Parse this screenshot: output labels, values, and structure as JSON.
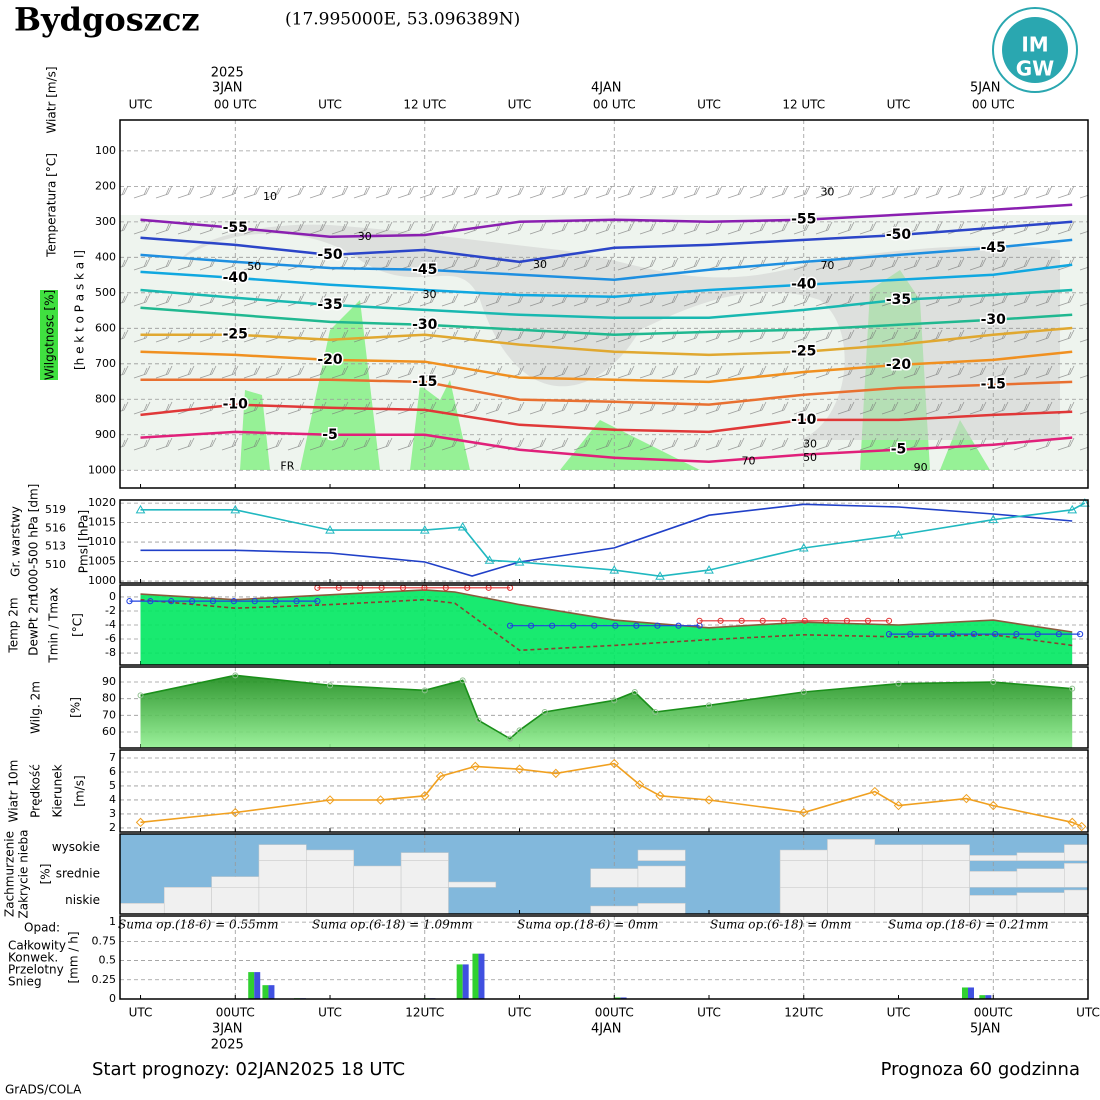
{
  "header": {
    "title": "Bydgoszcz",
    "coords": "(17.995000E, 53.096389N)",
    "logo": [
      "IM",
      "GW"
    ]
  },
  "footer": {
    "start": "Start prognozy: 02JAN2025 18 UTC",
    "length": "Prognoza 60 godzinna",
    "credit": "GrADS/COLA"
  },
  "time_axis": {
    "xlim": [
      -1.3,
      60
    ],
    "xticks": [
      {
        "value": 0,
        "label": "UTC"
      },
      {
        "value": 6,
        "label": "00UTC"
      },
      {
        "value": 12,
        "label": "UTC"
      },
      {
        "value": 18,
        "label": "12UTC"
      },
      {
        "value": 24,
        "label": "UTC"
      },
      {
        "value": 30,
        "label": "00UTC"
      },
      {
        "value": 36,
        "label": "UTC"
      },
      {
        "value": 42,
        "label": "12UTC"
      },
      {
        "value": 48,
        "label": "UTC"
      },
      {
        "value": 54,
        "label": "00UTC"
      },
      {
        "value": 60,
        "label": "UTC"
      }
    ],
    "top_labels": [
      "UTC",
      "00 UTC",
      "UTC",
      "12 UTC",
      "UTC",
      "00 UTC",
      "UTC",
      "12 UTC",
      "UTC",
      "00 UTC"
    ],
    "dates": [
      {
        "value": 6,
        "top": [
          "2025",
          "3JAN"
        ],
        "bottom": [
          "3JAN",
          "2025"
        ]
      },
      {
        "value": 30,
        "top": [
          "4JAN"
        ],
        "bottom": [
          "4JAN"
        ]
      },
      {
        "value": 54,
        "top": [
          "5JAN"
        ],
        "bottom": [
          "5JAN"
        ]
      }
    ]
  },
  "chart_data": [
    {
      "type": "contour",
      "ylabel": "[h e k t o P a s k a l]",
      "side_labels": [
        {
          "text": "Wiatr [m/s]",
          "color": "#000000"
        },
        {
          "text": "Temperatura [°C]",
          "color": "#d86040"
        },
        {
          "text": "Wilgotnosc [%]",
          "color": "#000000"
        }
      ],
      "ylim": [
        1050,
        13
      ],
      "yticks": [
        100,
        200,
        300,
        400,
        500,
        600,
        700,
        800,
        900,
        1000
      ],
      "x": [
        0,
        6,
        12,
        18,
        24,
        30,
        36,
        42,
        48,
        54,
        59
      ],
      "series": [
        {
          "name": "-55",
          "color": "#8a1fb0",
          "values": [
            294,
            317,
            342,
            337,
            300,
            294,
            300,
            294,
            280,
            266,
            252
          ]
        },
        {
          "name": "-50",
          "color": "#2b45c8",
          "values": [
            345,
            365,
            393,
            379,
            413,
            373,
            365,
            351,
            337,
            317,
            300
          ]
        },
        {
          "name": "-45",
          "color": "#1e8fe0",
          "values": [
            393,
            413,
            430,
            435,
            449,
            463,
            435,
            413,
            393,
            373,
            351
          ]
        },
        {
          "name": "-40",
          "color": "#10a8e0",
          "values": [
            441,
            458,
            477,
            492,
            506,
            511,
            492,
            477,
            463,
            449,
            421
          ]
        },
        {
          "name": "-35",
          "color": "#18b8b0",
          "values": [
            492,
            514,
            534,
            548,
            562,
            570,
            570,
            548,
            520,
            506,
            492
          ]
        },
        {
          "name": "-30",
          "color": "#20b890",
          "values": [
            542,
            562,
            582,
            590,
            604,
            618,
            610,
            604,
            590,
            576,
            562
          ]
        },
        {
          "name": "-25",
          "color": "#e0a830",
          "values": [
            618,
            618,
            632,
            618,
            646,
            666,
            675,
            666,
            646,
            618,
            599
          ]
        },
        {
          "name": "-20",
          "color": "#f09020",
          "values": [
            666,
            675,
            689,
            694,
            739,
            745,
            751,
            723,
            703,
            689,
            666
          ]
        },
        {
          "name": "-15",
          "color": "#e87030",
          "values": [
            745,
            745,
            745,
            751,
            801,
            807,
            815,
            787,
            768,
            759,
            751
          ]
        },
        {
          "name": "-10",
          "color": "#e03838",
          "values": [
            844,
            815,
            824,
            830,
            872,
            886,
            892,
            858,
            858,
            844,
            835
          ]
        },
        {
          "name": "-5",
          "color": "#e0207a",
          "values": [
            908,
            892,
            900,
            900,
            942,
            965,
            976,
            956,
            942,
            928,
            908
          ]
        }
      ],
      "annotations": [
        {
          "text": "10",
          "x": 8.2,
          "y": 230,
          "color": "#888888"
        },
        {
          "text": "30",
          "x": 14.2,
          "y": 342,
          "color": "#888888"
        },
        {
          "text": "50",
          "x": 7.2,
          "y": 427,
          "color": "#888888"
        },
        {
          "text": "30",
          "x": 25.3,
          "y": 421,
          "color": "#888888"
        },
        {
          "text": "30",
          "x": 18.3,
          "y": 506,
          "color": "#888888"
        },
        {
          "text": "30",
          "x": 43.5,
          "y": 218,
          "color": "#888888"
        },
        {
          "text": "70",
          "x": 43.5,
          "y": 424,
          "color": "#888888"
        },
        {
          "text": "30",
          "x": 42.4,
          "y": 928,
          "color": "#888888"
        },
        {
          "text": "50",
          "x": 42.4,
          "y": 965,
          "color": "#888888"
        },
        {
          "text": "70",
          "x": 38.5,
          "y": 976,
          "color": "#888888"
        },
        {
          "text": "90",
          "x": 49.4,
          "y": 993,
          "color": "#888888"
        },
        {
          "text": "FR",
          "x": 9.3,
          "y": 990,
          "color": "#000000"
        }
      ]
    },
    {
      "type": "line",
      "side_labels": [
        {
          "text": "Gr. warstwy",
          "color": "#20b8c0"
        },
        {
          "text": "1000-500 hPa [dm]",
          "color": "#20b8c0"
        },
        {
          "text": "Pmsl [hPa]",
          "color": "#2040c8"
        }
      ],
      "ylim": [
        999.5,
        1020.8
      ],
      "yticks": [
        1000,
        1005,
        1010,
        1015,
        1020
      ],
      "y2lim": [
        507.1,
        520.6
      ],
      "y2ticks": [
        510,
        513,
        516,
        519
      ],
      "series": [
        {
          "color": "#2040c8",
          "x": [
            0,
            6,
            12,
            18,
            21,
            24,
            30,
            36,
            42,
            48,
            54,
            59
          ],
          "values": [
            1007.9,
            1007.9,
            1007.2,
            1004.9,
            1001.3,
            1004.9,
            1008.5,
            1016.9,
            1019.7,
            1019.0,
            1017.2,
            1015.4
          ]
        },
        {
          "color": "#20b8c0",
          "axis": "y2",
          "marker": "triangle",
          "x": [
            0,
            6,
            12,
            18,
            20.4,
            22.1,
            24,
            30,
            32.9,
            36,
            42,
            48,
            54,
            59,
            59.8
          ],
          "values": [
            519,
            519,
            515.7,
            515.7,
            516.2,
            510.8,
            510.5,
            509.2,
            508.2,
            509.2,
            512.8,
            514.9,
            517.4,
            519,
            520.1
          ]
        }
      ]
    },
    {
      "type": "line",
      "side_labels": [
        {
          "text": "Temp 2m",
          "color": "#8b5a3c"
        },
        {
          "text": "DewPt 2m",
          "color": "#6a3a2a"
        },
        {
          "text": "Tmin / Tmax",
          "color": "#2040e0"
        },
        {
          "text": "[°C]",
          "color": "#000000"
        }
      ],
      "ylim": [
        -9.7,
        1.7
      ],
      "yticks": [
        0,
        -2,
        -4,
        -6,
        -8
      ],
      "series": [
        {
          "color": "#8b5a3c",
          "fill": "#00e860",
          "x": [
            0,
            6,
            12,
            18,
            19.9,
            24,
            30,
            36,
            42,
            48,
            54,
            59
          ],
          "values": [
            0.4,
            -0.4,
            0.3,
            1.0,
            0.7,
            -1.1,
            -3.3,
            -4.4,
            -3.6,
            -4.0,
            -3.3,
            -5.0
          ]
        },
        {
          "color": "#8b4030",
          "dash": true,
          "x": [
            0,
            6,
            12,
            18,
            19.9,
            24,
            30,
            36,
            42,
            48,
            54,
            59
          ],
          "values": [
            -0.4,
            -1.6,
            -1.1,
            -0.4,
            -0.9,
            -7.6,
            -6.9,
            -6.1,
            -5.4,
            -5.7,
            -5.4,
            -6.9
          ]
        }
      ],
      "tmin": {
        "color": "#2040e0",
        "x": [
          [
            -0.7,
            11.2
          ],
          [
            23.4,
            35.4
          ],
          [
            47.4,
            59.5
          ]
        ],
        "values": [
          -0.6,
          -4.1,
          -5.3
        ]
      },
      "tmax": {
        "color": "#e03030",
        "x": [
          [
            11.2,
            23.4
          ],
          [
            35.4,
            47.4
          ]
        ],
        "values": [
          1.3,
          -3.4
        ]
      }
    },
    {
      "type": "area",
      "side_labels": [
        {
          "text": "Wilg. 2m",
          "color": "#60d060"
        },
        {
          "text": "[%]",
          "color": "#000000"
        }
      ],
      "ylim": [
        50.4,
        99
      ],
      "yticks": [
        60,
        70,
        80,
        90
      ],
      "series": [
        {
          "color": "#1a8f1a",
          "x": [
            0,
            6,
            12,
            18,
            20.4,
            21.4,
            23.4,
            24,
            25.6,
            30,
            31.3,
            32.6,
            36,
            42,
            48,
            54,
            59
          ],
          "values": [
            82,
            94,
            88,
            85,
            91,
            67,
            56,
            61,
            72,
            79,
            84,
            72,
            76,
            84,
            89,
            90,
            86
          ]
        }
      ]
    },
    {
      "type": "line",
      "side_labels": [
        {
          "text": "Wiatr 10m",
          "color": "#000000"
        },
        {
          "text": "Prędkość",
          "color": "#e0a020"
        },
        {
          "text": "Kierunek",
          "color": "#333333"
        },
        {
          "text": "[m/s]",
          "color": "#000000"
        }
      ],
      "ylim": [
        1.71,
        7.57
      ],
      "yticks": [
        2,
        3,
        4,
        5,
        6,
        7
      ],
      "series": [
        {
          "color": "#f0a020",
          "marker": "diamond",
          "x": [
            0,
            6,
            12,
            15.2,
            18,
            19,
            21.2,
            24,
            26.3,
            30,
            31.6,
            32.9,
            36,
            42,
            46.5,
            48,
            52.3,
            54,
            59,
            59.6
          ],
          "values": [
            2.4,
            3.1,
            4.0,
            4.0,
            4.3,
            5.7,
            6.4,
            6.2,
            5.9,
            6.6,
            5.1,
            4.3,
            4.0,
            3.1,
            4.6,
            3.6,
            4.1,
            3.6,
            2.4,
            2.1
          ]
        }
      ]
    },
    {
      "type": "cloud",
      "side_labels": [
        {
          "text": "Zachmurzenie",
          "color": "#3080c0"
        },
        {
          "text": "Zakrycie nieba",
          "color": "#3080c0"
        },
        {
          "text": "[%]",
          "color": "#000000"
        }
      ],
      "x": [
        0,
        3,
        6,
        9,
        12,
        15,
        18,
        21,
        24,
        27,
        30,
        33,
        36,
        39,
        42,
        45,
        48,
        51,
        54,
        57,
        60
      ],
      "series": [
        {
          "name": "wysokie",
          "values": [
            0,
            0,
            0,
            60,
            40,
            0,
            30,
            0,
            0,
            0,
            0,
            40,
            0,
            0,
            40,
            80,
            60,
            60,
            20,
            30,
            60
          ]
        },
        {
          "name": "srednie",
          "values": [
            0,
            0,
            40,
            100,
            100,
            80,
            100,
            20,
            0,
            0,
            70,
            80,
            0,
            0,
            100,
            100,
            100,
            100,
            60,
            70,
            90
          ]
        },
        {
          "name": "niskie",
          "values": [
            40,
            100,
            100,
            100,
            100,
            100,
            100,
            0,
            0,
            0,
            30,
            40,
            0,
            0,
            100,
            100,
            100,
            100,
            70,
            80,
            90
          ]
        }
      ]
    },
    {
      "type": "bar",
      "title": "Opad:",
      "ylabel": "[mm / h]",
      "ylim": [
        0,
        1.08
      ],
      "yticks": [
        0,
        0.25,
        0.5,
        0.75,
        1
      ],
      "x": [
        7.2,
        8.1,
        10.1,
        18.3,
        20.4,
        21.4,
        30.4,
        52.4,
        53.5
      ],
      "series": [
        {
          "name": "Całkowity",
          "color": "#30d030",
          "values": [
            0.35,
            0.18,
            0.01,
            0.01,
            0.45,
            0.59,
            0.02,
            0.15,
            0.05
          ]
        },
        {
          "name": "Konwek.",
          "color": "#e04040",
          "values": [
            0,
            0,
            0,
            0,
            0,
            0,
            0,
            0,
            0
          ]
        },
        {
          "name": "Przelotny",
          "color": "#e09020",
          "values": [
            0,
            0,
            0,
            0,
            0,
            0,
            0,
            0,
            0
          ]
        },
        {
          "name": "Snieg",
          "color": "#4050e0",
          "values": [
            0.35,
            0.18,
            0.01,
            0.01,
            0.45,
            0.59,
            0.02,
            0.15,
            0.05
          ]
        }
      ],
      "sums": [
        "Suma op.(18-6) = 0.55mm",
        "Suma op.(6-18) = 1.09mm",
        "Suma op.(18-6) = 0mm",
        "Suma op.(6-18) = 0mm",
        "Suma op.(18-6) = 0.21mm"
      ]
    }
  ]
}
